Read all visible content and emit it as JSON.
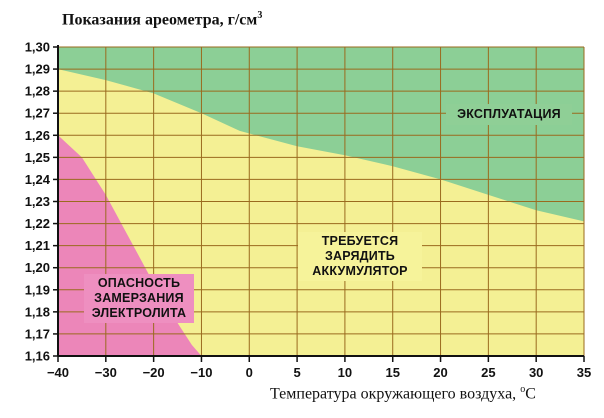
{
  "chart_data": {
    "type": "area",
    "ylabel": {
      "text": "Показания ареометра, г/см",
      "superscript": "3"
    },
    "xlabel": {
      "text": "Температура окружающего воздуха, ",
      "superscript": "o",
      "suffix": "C"
    },
    "xlim": [
      -40,
      35
    ],
    "ylim": [
      1.16,
      1.3
    ],
    "x_ticks": [
      "−40",
      "−30",
      "−20",
      "−10",
      "0",
      "5",
      "10",
      "15",
      "20",
      "25",
      "30",
      "35"
    ],
    "x_tick_values": [
      -40,
      -30,
      -20,
      -10,
      0,
      5,
      10,
      15,
      20,
      25,
      30,
      35
    ],
    "y_ticks": [
      "1,16",
      "1,17",
      "1,18",
      "1,19",
      "1,20",
      "1,21",
      "1,22",
      "1,23",
      "1,24",
      "1,25",
      "1,26",
      "1,27",
      "1,28",
      "1,29",
      "1,30"
    ],
    "y_tick_values": [
      1.16,
      1.17,
      1.18,
      1.19,
      1.2,
      1.21,
      1.22,
      1.23,
      1.24,
      1.25,
      1.26,
      1.27,
      1.28,
      1.29,
      1.3
    ],
    "grid": true,
    "series": [
      {
        "key": "danger",
        "color": "#ec86b9",
        "label": [
          "ОПАСНОСТЬ",
          "ЗАМЕРЗАНИЯ",
          "ЭЛЕКТРОЛИТА"
        ],
        "boundary": [
          [
            -40,
            1.26
          ],
          [
            -35,
            1.25
          ],
          [
            -30,
            1.233
          ],
          [
            -25,
            1.213
          ],
          [
            -20,
            1.193
          ],
          [
            -15,
            1.175
          ],
          [
            -12,
            1.165
          ],
          [
            -10,
            1.16
          ]
        ]
      },
      {
        "key": "charge",
        "color": "#f4f094",
        "label": [
          "ТРЕБУЕТСЯ",
          "ЗАРЯДИТЬ",
          "АККУМУЛЯТОР"
        ]
      },
      {
        "key": "operation",
        "color": "#8ccf96",
        "label": [
          "ЭКСПЛУАТАЦИЯ"
        ],
        "boundary": [
          [
            -40,
            1.29
          ],
          [
            -30,
            1.285
          ],
          [
            -20,
            1.279
          ],
          [
            -10,
            1.27
          ],
          [
            -2,
            1.262
          ],
          [
            5,
            1.255
          ],
          [
            10,
            1.251
          ],
          [
            15,
            1.246
          ],
          [
            20,
            1.24
          ],
          [
            25,
            1.233
          ],
          [
            30,
            1.226
          ],
          [
            35,
            1.221
          ]
        ]
      }
    ],
    "colors": {
      "grid": "#9a6a1e",
      "axis": "#111111",
      "background": "#ffffff"
    }
  }
}
